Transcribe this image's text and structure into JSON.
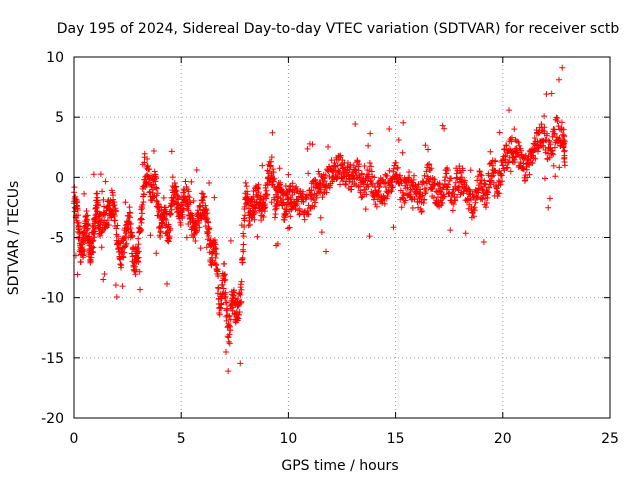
{
  "chart_data": {
    "type": "scatter",
    "title": "Day 195 of 2024, Sidereal Day-to-day VTEC variation (SDTVAR) for receiver sctb",
    "xlabel": "GPS time / hours",
    "ylabel": "SDTVAR / TECUs",
    "xlim": [
      0,
      25
    ],
    "ylim": [
      -20,
      10
    ],
    "xticks": [
      "0",
      "5",
      "10",
      "15",
      "20",
      "25"
    ],
    "yticks": [
      "-20",
      "-15",
      "-10",
      "-5",
      "0",
      "5",
      "10"
    ],
    "grid": true,
    "marker": "+",
    "color": "#ff0000",
    "series": [
      {
        "name": "SDTVAR",
        "anchors": [
          [
            0.0,
            -1.5
          ],
          [
            0.15,
            -3.0
          ],
          [
            0.3,
            -6.0
          ],
          [
            0.45,
            -5.5
          ],
          [
            0.6,
            -3.5
          ],
          [
            0.75,
            -6.5
          ],
          [
            0.9,
            -5.0
          ],
          [
            1.05,
            -2.0
          ],
          [
            1.2,
            -4.0
          ],
          [
            1.4,
            -3.5
          ],
          [
            1.6,
            -3.0
          ],
          [
            1.8,
            -2.0
          ],
          [
            2.0,
            -4.5
          ],
          [
            2.2,
            -6.5
          ],
          [
            2.4,
            -5.0
          ],
          [
            2.6,
            -3.5
          ],
          [
            2.8,
            -7.5
          ],
          [
            3.0,
            -6.0
          ],
          [
            3.2,
            -2.0
          ],
          [
            3.4,
            0.5
          ],
          [
            3.6,
            -1.0
          ],
          [
            3.8,
            -0.5
          ],
          [
            4.0,
            -4.0
          ],
          [
            4.2,
            -2.5
          ],
          [
            4.4,
            -5.0
          ],
          [
            4.6,
            -1.0
          ],
          [
            4.8,
            -2.0
          ],
          [
            5.0,
            -3.0
          ],
          [
            5.2,
            -1.0
          ],
          [
            5.4,
            -2.5
          ],
          [
            5.6,
            -5.0
          ],
          [
            5.8,
            -3.5
          ],
          [
            6.0,
            -2.0
          ],
          [
            6.2,
            -3.5
          ],
          [
            6.4,
            -6.5
          ],
          [
            6.6,
            -6.0
          ],
          [
            6.8,
            -11.0
          ],
          [
            7.0,
            -8.0
          ],
          [
            7.2,
            -13.0
          ],
          [
            7.4,
            -10.0
          ],
          [
            7.6,
            -11.5
          ],
          [
            7.8,
            -9.5
          ],
          [
            8.0,
            -1.0
          ],
          [
            8.2,
            -3.0
          ],
          [
            8.4,
            -2.0
          ],
          [
            8.6,
            -1.5
          ],
          [
            8.8,
            -3.0
          ],
          [
            9.0,
            -0.5
          ],
          [
            9.2,
            1.0
          ],
          [
            9.4,
            -2.0
          ],
          [
            9.6,
            -1.0
          ],
          [
            9.8,
            -2.5
          ],
          [
            10.0,
            -2.0
          ],
          [
            10.2,
            -1.5
          ],
          [
            10.5,
            -2.0
          ],
          [
            10.8,
            -2.5
          ],
          [
            11.1,
            -1.5
          ],
          [
            11.4,
            -0.5
          ],
          [
            11.7,
            -0.8
          ],
          [
            12.0,
            0.5
          ],
          [
            12.3,
            1.0
          ],
          [
            12.6,
            0.5
          ],
          [
            12.9,
            0.0
          ],
          [
            13.2,
            0.5
          ],
          [
            13.5,
            -1.0
          ],
          [
            13.8,
            0.2
          ],
          [
            14.1,
            -1.5
          ],
          [
            14.4,
            -1.0
          ],
          [
            14.7,
            -0.5
          ],
          [
            15.0,
            0.5
          ],
          [
            15.3,
            -1.5
          ],
          [
            15.6,
            -0.5
          ],
          [
            15.9,
            -1.0
          ],
          [
            16.2,
            -2.0
          ],
          [
            16.5,
            0.5
          ],
          [
            16.8,
            -1.0
          ],
          [
            17.1,
            -1.5
          ],
          [
            17.4,
            0.0
          ],
          [
            17.7,
            -2.0
          ],
          [
            18.0,
            0.5
          ],
          [
            18.3,
            -1.5
          ],
          [
            18.6,
            -2.5
          ],
          [
            18.9,
            -0.5
          ],
          [
            19.2,
            -1.5
          ],
          [
            19.5,
            1.0
          ],
          [
            19.8,
            -0.5
          ],
          [
            20.1,
            1.5
          ],
          [
            20.4,
            2.5
          ],
          [
            20.7,
            2.0
          ],
          [
            21.0,
            0.5
          ],
          [
            21.3,
            1.5
          ],
          [
            21.6,
            3.0
          ],
          [
            21.9,
            3.5
          ],
          [
            22.2,
            2.0
          ],
          [
            22.5,
            4.0
          ],
          [
            22.8,
            3.5
          ],
          [
            22.9,
            2.0
          ]
        ],
        "spread_note": "noisy per-epoch samples around anchors"
      }
    ]
  }
}
